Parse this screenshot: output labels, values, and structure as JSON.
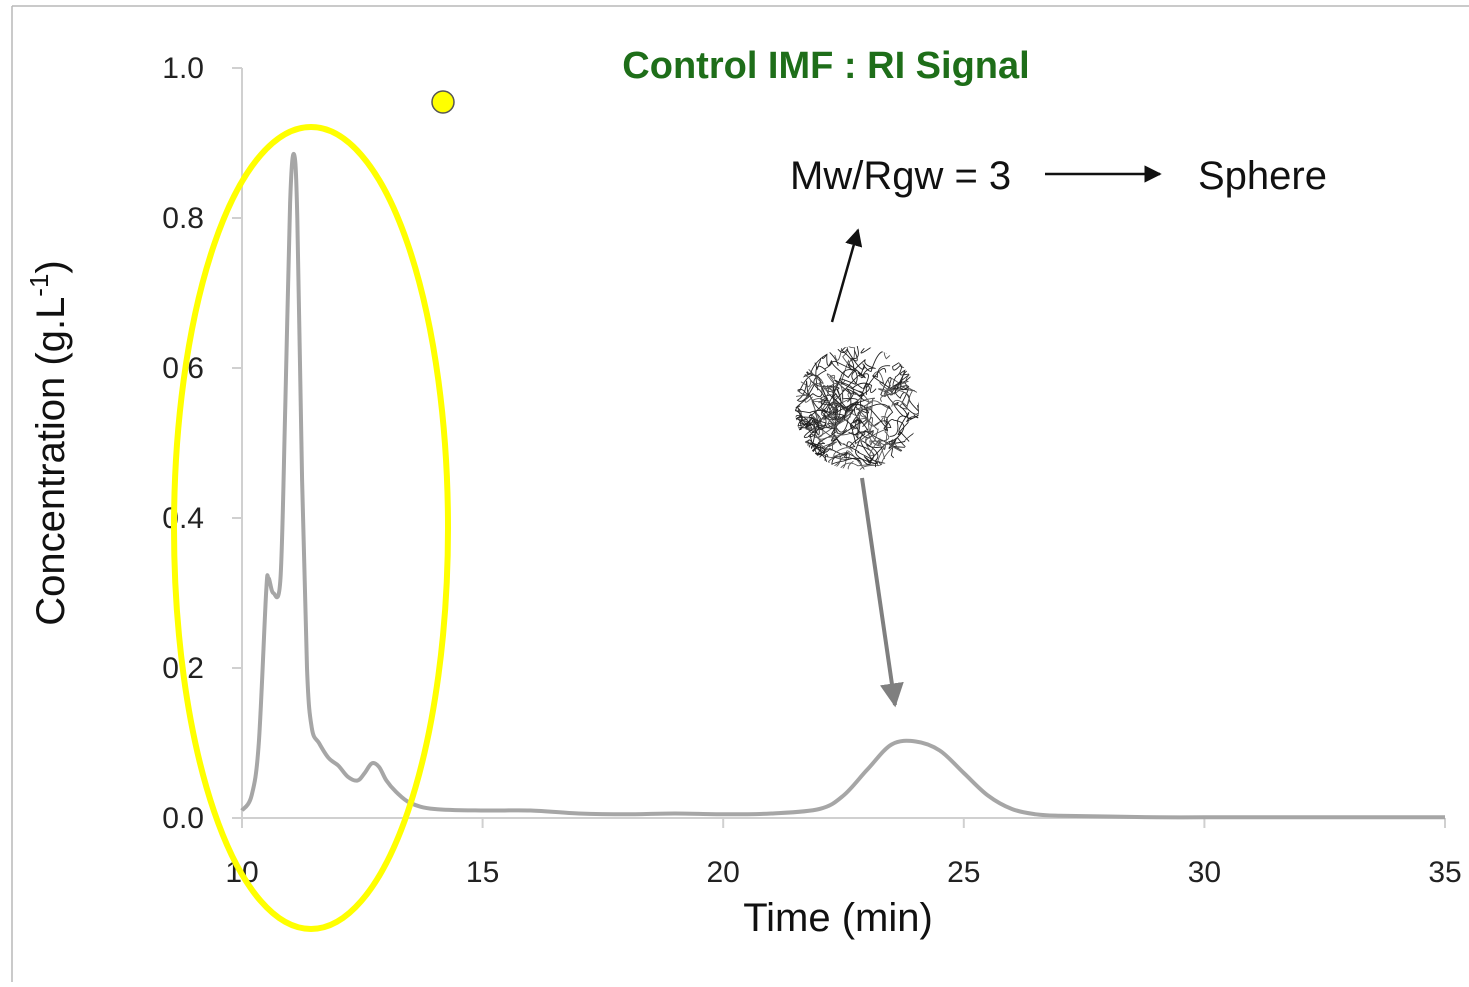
{
  "chart_data": {
    "type": "line",
    "title": "Control IMF : RI Signal",
    "xlabel": "Time (min)",
    "ylabel": "Concentration (g.L-1)",
    "ylabel_parts": {
      "main": "Concentration (g.L",
      "sup": "-1",
      "close": ")"
    },
    "xlim": [
      10,
      35
    ],
    "ylim": [
      0,
      1.0
    ],
    "x_ticks": [
      10,
      15,
      20,
      25,
      30,
      35
    ],
    "y_ticks": [
      "0.0",
      "0.2",
      "0.4",
      "0.6",
      "0.8",
      "1.0"
    ],
    "grid": false,
    "series": [
      {
        "color": "#a6a6a6",
        "x": [
          10.0,
          10.2,
          10.35,
          10.5,
          10.55,
          10.65,
          10.8,
          10.9,
          11.0,
          11.08,
          11.15,
          11.25,
          11.35,
          11.45,
          11.6,
          11.8,
          12.0,
          12.2,
          12.4,
          12.55,
          12.7,
          12.85,
          13.0,
          13.2,
          13.5,
          14.0,
          15.0,
          16.0,
          17.0,
          18.0,
          19.0,
          20.0,
          21.0,
          22.0,
          22.5,
          23.0,
          23.5,
          24.0,
          24.5,
          25.0,
          25.5,
          26.0,
          26.5,
          27.0,
          28.0,
          29.0,
          30.0,
          31.0,
          32.0,
          33.0,
          34.0,
          35.0
        ],
        "y": [
          0.01,
          0.03,
          0.1,
          0.3,
          0.32,
          0.3,
          0.32,
          0.55,
          0.82,
          0.885,
          0.8,
          0.45,
          0.2,
          0.12,
          0.1,
          0.08,
          0.07,
          0.055,
          0.05,
          0.06,
          0.073,
          0.068,
          0.05,
          0.035,
          0.02,
          0.012,
          0.01,
          0.01,
          0.006,
          0.005,
          0.006,
          0.005,
          0.006,
          0.012,
          0.03,
          0.065,
          0.098,
          0.102,
          0.09,
          0.06,
          0.03,
          0.012,
          0.005,
          0.003,
          0.002,
          0.001,
          0.001,
          0.001,
          0.001,
          0.001,
          0.001,
          0.001
        ]
      }
    ],
    "annotations": {
      "ratio_text": "Mw/Rgw = 3",
      "shape_text": "Sphere",
      "highlight_color": "#ffff00",
      "title_color": "#1e6e19"
    }
  }
}
